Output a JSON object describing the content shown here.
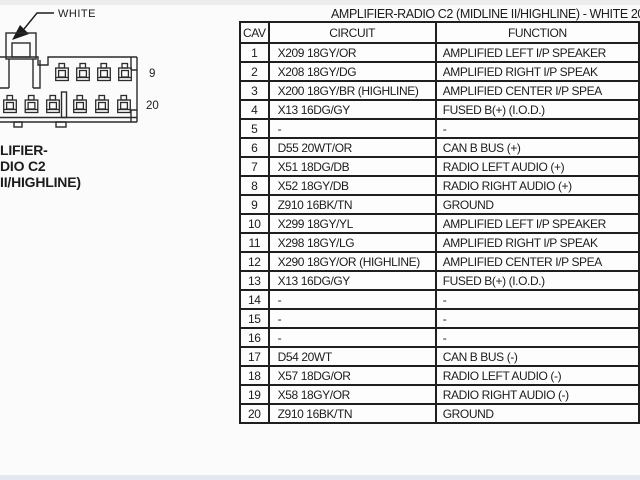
{
  "colors": {
    "ink": "#1c1c1c",
    "background": "#fbfbfb"
  },
  "connector": {
    "arrow_label": "WHITE",
    "top_row_pin_label": "9",
    "bottom_row_pin_label": "20",
    "caption_lines": [
      "LIFIER-",
      "DIO C2",
      "II/HIGHLINE)"
    ]
  },
  "table": {
    "title": "AMPLIFIER-RADIO C2 (MIDLINE II/HIGHLINE) - WHITE 20",
    "columns": [
      "CAV",
      "CIRCUIT",
      "FUNCTION"
    ],
    "rows": [
      {
        "cav": "1",
        "circuit": "X209 18GY/OR",
        "function": "AMPLIFIED LEFT I/P SPEAKER"
      },
      {
        "cav": "2",
        "circuit": "X208 18GY/DG",
        "function": "AMPLIFIED RIGHT I/P SPEAK"
      },
      {
        "cav": "3",
        "circuit": "X200 18GY/BR (HIGHLINE)",
        "function": "AMPLIFIED CENTER I/P SPEA"
      },
      {
        "cav": "4",
        "circuit": "X13 16DG/GY",
        "function": "FUSED B(+) (I.O.D.)"
      },
      {
        "cav": "5",
        "circuit": "-",
        "function": "-"
      },
      {
        "cav": "6",
        "circuit": "D55 20WT/OR",
        "function": "CAN B BUS (+)"
      },
      {
        "cav": "7",
        "circuit": "X51 18DG/DB",
        "function": "RADIO LEFT AUDIO (+)"
      },
      {
        "cav": "8",
        "circuit": "X52 18GY/DB",
        "function": "RADIO RIGHT AUDIO (+)"
      },
      {
        "cav": "9",
        "circuit": "Z910 16BK/TN",
        "function": "GROUND"
      },
      {
        "cav": "10",
        "circuit": "X299 18GY/YL",
        "function": "AMPLIFIED LEFT I/P SPEAKER"
      },
      {
        "cav": "11",
        "circuit": "X298 18GY/LG",
        "function": "AMPLIFIED RIGHT I/P SPEAK"
      },
      {
        "cav": "12",
        "circuit": "X290 18GY/OR (HIGHLINE)",
        "function": "AMPLIFIED CENTER I/P SPEA"
      },
      {
        "cav": "13",
        "circuit": "X13 16DG/GY",
        "function": "FUSED B(+) (I.O.D.)"
      },
      {
        "cav": "14",
        "circuit": "-",
        "function": "-"
      },
      {
        "cav": "15",
        "circuit": "-",
        "function": "-"
      },
      {
        "cav": "16",
        "circuit": "-",
        "function": "-"
      },
      {
        "cav": "17",
        "circuit": "D54 20WT",
        "function": "CAN B BUS (-)"
      },
      {
        "cav": "18",
        "circuit": "X57 18DG/OR",
        "function": "RADIO LEFT AUDIO (-)"
      },
      {
        "cav": "19",
        "circuit": "X58 18GY/OR",
        "function": "RADIO RIGHT AUDIO (-)"
      },
      {
        "cav": "20",
        "circuit": "Z910 16BK/TN",
        "function": "GROUND"
      }
    ]
  }
}
